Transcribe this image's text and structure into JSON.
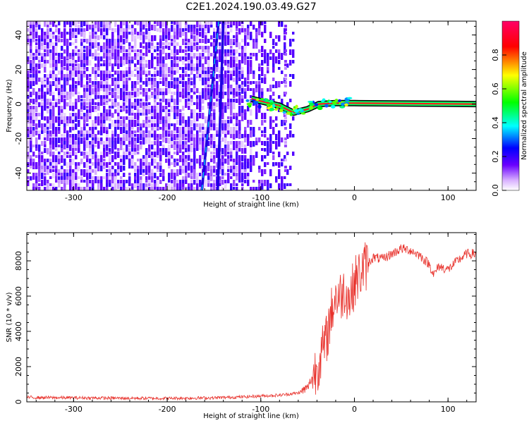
{
  "chart_data": [
    {
      "type": "heatmap",
      "title": "C2E1.2024.190.03.49.G27",
      "xlabel": "Height of straight line (km)",
      "ylabel": "Frequency (Hz)",
      "xlim": [
        -350,
        130
      ],
      "ylim": [
        -50,
        48
      ],
      "xticks": [
        -300,
        -200,
        -100,
        0,
        100
      ],
      "yticks": [
        -40,
        -20,
        0,
        20,
        40
      ],
      "colorbar": {
        "label": "Normalized spectral amplitude",
        "range": [
          0,
          1
        ],
        "ticks": [
          0.0,
          0.2,
          0.4,
          0.6,
          0.8
        ],
        "colors": [
          "#ffffff",
          "#6a00ff",
          "#0000ff",
          "#00ffff",
          "#00ff00",
          "#ffff00",
          "#ff0000",
          "#ff0066"
        ]
      },
      "features": {
        "noise_region_x": [
          -350,
          -65
        ],
        "signal_line": [
          {
            "x": -110,
            "y": 3
          },
          {
            "x": -95,
            "y": 1
          },
          {
            "x": -80,
            "y": -1
          },
          {
            "x": -65,
            "y": -5
          },
          {
            "x": -50,
            "y": -3
          },
          {
            "x": -38,
            "y": 0
          },
          {
            "x": -20,
            "y": 0.5
          },
          {
            "x": 0,
            "y": 0.5
          },
          {
            "x": 130,
            "y": 0
          }
        ],
        "diagonal_streaks": [
          {
            "from": [
              -163,
              -50
            ],
            "to": [
              -145,
              48
            ]
          },
          {
            "from": [
              -146,
              -50
            ],
            "to": [
              -140,
              48
            ]
          }
        ]
      }
    },
    {
      "type": "line",
      "xlabel": "Height of straight line (km)",
      "ylabel": "SNR (10 * v/v)",
      "xlim": [
        -350,
        130
      ],
      "ylim": [
        0,
        9600
      ],
      "xticks": [
        -300,
        -200,
        -100,
        0,
        100
      ],
      "yticks": [
        0,
        2000,
        4000,
        6000,
        8000
      ],
      "color": "#e8302a",
      "x": [
        -350,
        -300,
        -250,
        -200,
        -150,
        -120,
        -100,
        -80,
        -60,
        -50,
        -40,
        -30,
        -25,
        -20,
        -15,
        -10,
        -5,
        0,
        10,
        20,
        30,
        40,
        50,
        60,
        70,
        80,
        85,
        90,
        100,
        110,
        120,
        130
      ],
      "values": [
        250,
        230,
        210,
        200,
        230,
        280,
        330,
        380,
        500,
        800,
        2000,
        3500,
        5000,
        6000,
        6000,
        6400,
        5800,
        6800,
        7600,
        8200,
        8100,
        8400,
        8700,
        8600,
        8300,
        7800,
        7200,
        7700,
        7500,
        8000,
        8400,
        8400
      ]
    }
  ]
}
